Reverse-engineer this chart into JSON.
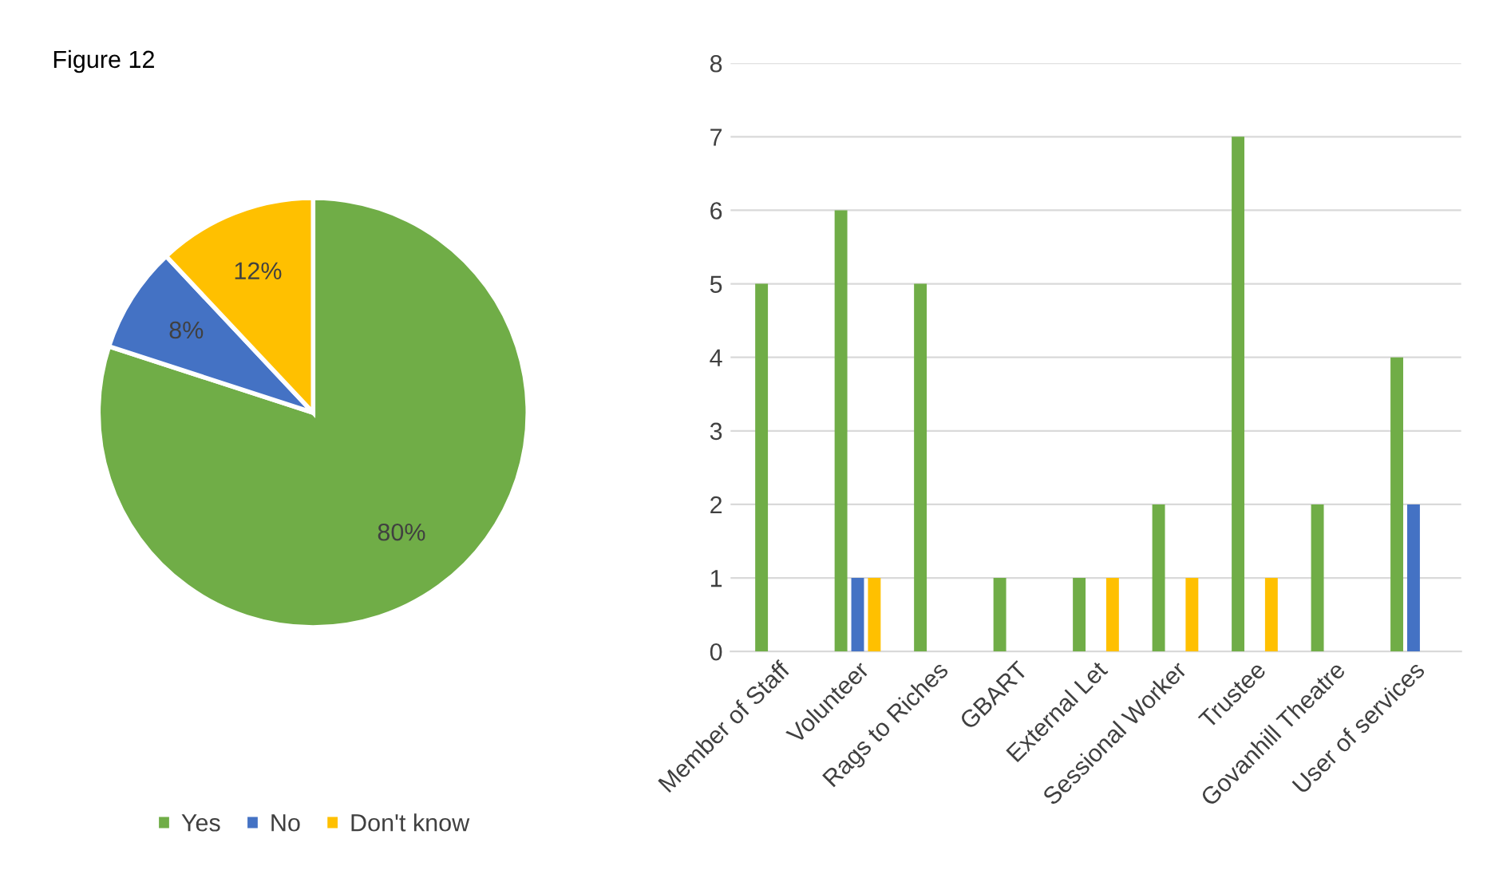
{
  "chart_data": [
    {
      "type": "pie",
      "title": "Figure 12",
      "categories": [
        "Yes",
        "No",
        "Don't know"
      ],
      "values": [
        80,
        8,
        12
      ],
      "colors": [
        "#70ad47",
        "#4472c4",
        "#ffc000"
      ],
      "value_labels": [
        "80%",
        "8%",
        "12%"
      ],
      "legend": "bottom"
    },
    {
      "type": "bar",
      "categories": [
        "Member of Staff",
        "Volunteer",
        "Rags to Riches",
        "GBART",
        "External Let",
        "Sessional Worker",
        "Trustee",
        "Govanhill Theatre",
        "User of services"
      ],
      "series": [
        {
          "color": "#70ad47",
          "values": [
            5,
            6,
            5,
            1,
            1,
            2,
            7,
            2,
            4
          ]
        },
        {
          "color": "#4472c4",
          "values": [
            null,
            1,
            null,
            null,
            null,
            null,
            null,
            null,
            2
          ]
        },
        {
          "color": "#ffc000",
          "values": [
            null,
            1,
            null,
            null,
            1,
            1,
            1,
            null,
            null
          ]
        }
      ],
      "ylim": [
        0,
        8
      ],
      "yticks": [
        0,
        1,
        2,
        3,
        4,
        5,
        6,
        7,
        8
      ],
      "grid": "y"
    }
  ]
}
